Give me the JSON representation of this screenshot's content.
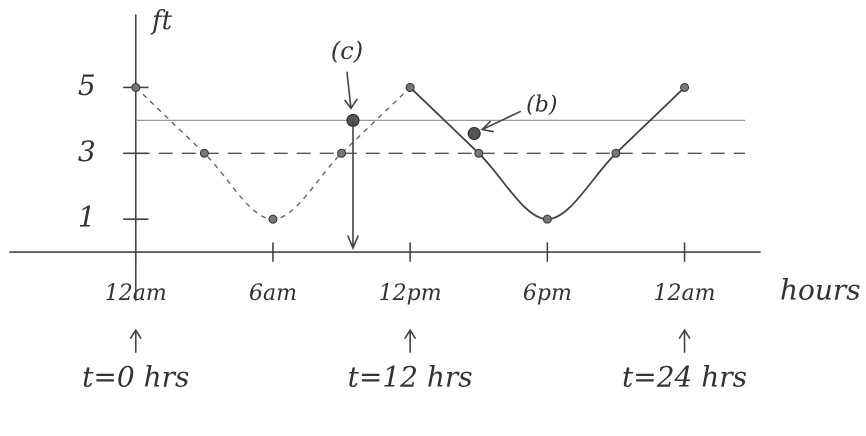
{
  "chart_data": {
    "type": "line",
    "y_label": "ft",
    "x_label": "hours",
    "xlim": [
      -5.5,
      27.3
    ],
    "ylim": [
      -1,
      7.2
    ],
    "xticks": [
      {
        "value": 0,
        "label": "12am"
      },
      {
        "value": 6,
        "label": "6am"
      },
      {
        "value": 12,
        "label": "12pm"
      },
      {
        "value": 18,
        "label": "6pm"
      },
      {
        "value": 24,
        "label": "12am"
      }
    ],
    "yticks": [
      1,
      3,
      5
    ],
    "reference_lines": [
      {
        "value": 4,
        "style": "solid",
        "color": "#9a9a9a"
      },
      {
        "value": 3,
        "style": "dashed",
        "color": "#555555"
      }
    ],
    "series": [
      {
        "style": "dashed",
        "color": "#666666",
        "x": [
          0,
          3,
          6,
          9,
          12
        ],
        "values": [
          5,
          3,
          1,
          3,
          5
        ]
      },
      {
        "style": "solid",
        "color": "#444444",
        "x": [
          12,
          15,
          18,
          21,
          24
        ],
        "values": [
          5,
          3,
          1,
          3,
          5
        ]
      }
    ],
    "points": [
      {
        "label": "(c)",
        "x": 9.5,
        "y": 4
      },
      {
        "label": "(b)",
        "x": 14.8,
        "y": 3.6
      }
    ],
    "time_markers": [
      {
        "x": 0,
        "text": "t=0 hrs"
      },
      {
        "x": 12,
        "text": "t=12 hrs"
      },
      {
        "x": 24,
        "text": "t=24 hrs"
      }
    ]
  }
}
